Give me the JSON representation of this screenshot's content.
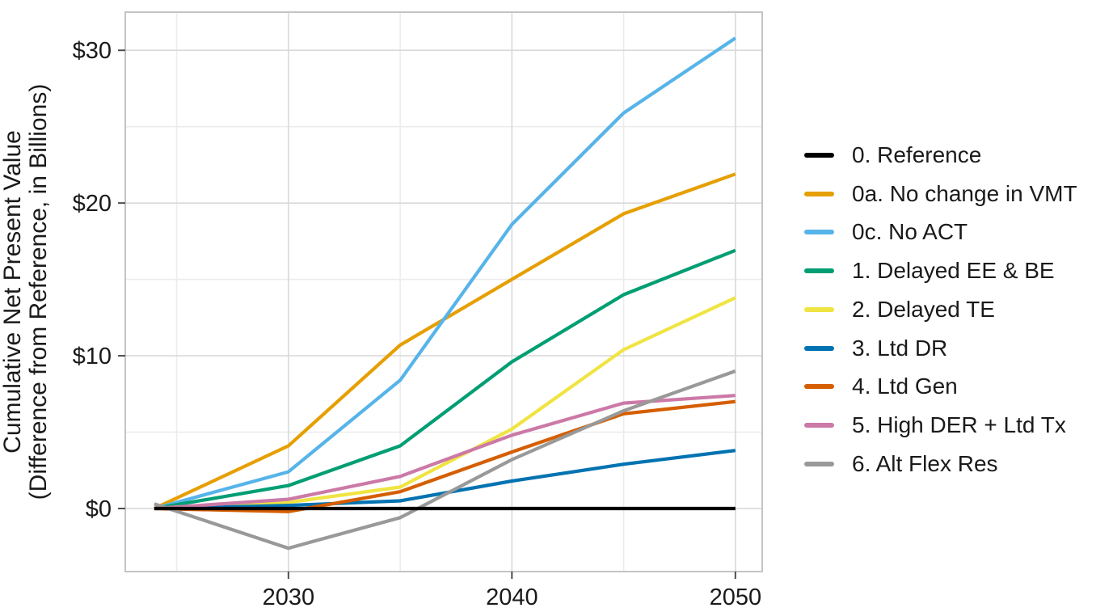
{
  "chart_data": {
    "type": "line",
    "title": "",
    "xlabel": "",
    "ylabel_lines": [
      "Cumulative Net Present Value",
      "(Difference from Reference, in Billions)"
    ],
    "x": [
      2024,
      2030,
      2035,
      2040,
      2045,
      2050
    ],
    "x_tick_values": [
      2030,
      2040,
      2050
    ],
    "x_tick_labels": [
      "2030",
      "2040",
      "2050"
    ],
    "x_minor_gridlines": [
      2025,
      2035,
      2045
    ],
    "y_ticks": [
      {
        "value": 0,
        "label": "$0"
      },
      {
        "value": 10,
        "label": "$10"
      },
      {
        "value": 20,
        "label": "$20"
      },
      {
        "value": 30,
        "label": "$30"
      }
    ],
    "y_minor_gridlines": [
      5,
      15,
      25
    ],
    "xlim": [
      2022.7,
      2051.2
    ],
    "ylim": [
      -4.13,
      32.5
    ],
    "grid": "major and minor light-gray gridlines on white panel",
    "legend_position": "right",
    "units": "billions of dollars, difference from Reference",
    "series": [
      {
        "name": "0. Reference",
        "color": "#000000",
        "values": [
          0,
          0,
          0,
          0,
          0,
          0
        ]
      },
      {
        "name": "0a. No change in VMT",
        "color": "#E69F00",
        "values": [
          0,
          4.1,
          10.7,
          15.0,
          19.3,
          21.9
        ]
      },
      {
        "name": "0c. No ACT",
        "color": "#56B4E9",
        "values": [
          0,
          2.4,
          8.4,
          18.6,
          25.9,
          30.8
        ]
      },
      {
        "name": "1. Delayed EE & BE",
        "color": "#009E73",
        "values": [
          0,
          1.5,
          4.1,
          9.6,
          14.0,
          16.9
        ]
      },
      {
        "name": "2. Delayed TE",
        "color": "#F0E442",
        "values": [
          0,
          0.4,
          1.4,
          5.2,
          10.4,
          13.8
        ]
      },
      {
        "name": "3. Ltd DR",
        "color": "#0072B2",
        "values": [
          0,
          0.2,
          0.5,
          1.8,
          2.9,
          3.8
        ]
      },
      {
        "name": "4. Ltd Gen",
        "color": "#D55E00",
        "values": [
          0,
          -0.2,
          1.1,
          3.7,
          6.2,
          7.0
        ]
      },
      {
        "name": "5. High DER + Ltd Tx",
        "color": "#CC79A7",
        "values": [
          0,
          0.6,
          2.1,
          4.8,
          6.9,
          7.4
        ]
      },
      {
        "name": "6. Alt Flex Res",
        "color": "#999999",
        "values": [
          0.3,
          -2.6,
          -0.6,
          3.2,
          6.4,
          9.0
        ]
      }
    ]
  }
}
